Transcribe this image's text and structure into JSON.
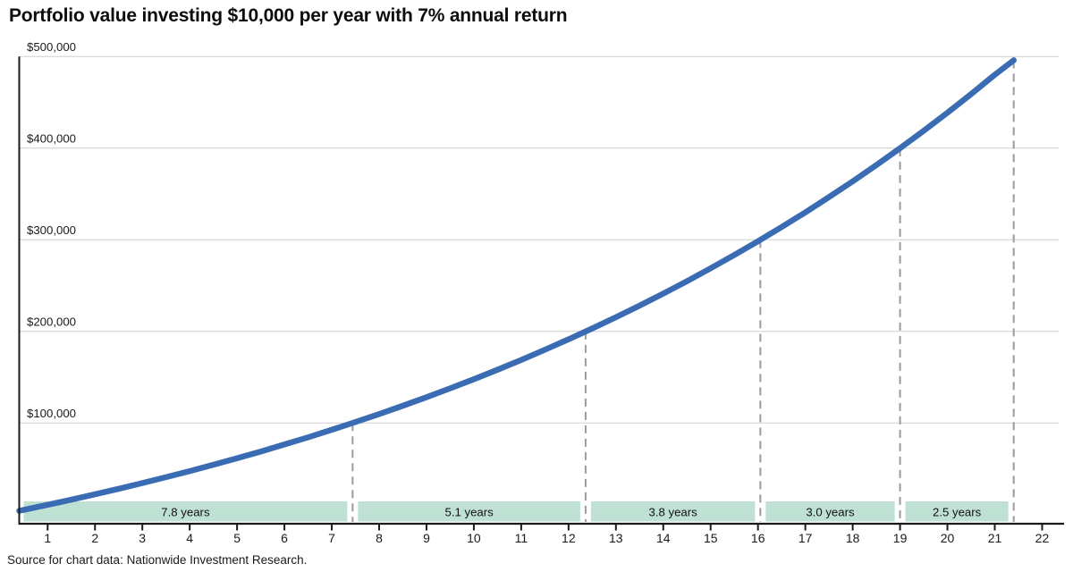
{
  "source_note": "Source for chart data: Nationwide Investment Research.",
  "chart_data": {
    "type": "line",
    "title": "Portfolio value investing $10,000 per year with 7% annual return",
    "xlabel": "",
    "ylabel": "",
    "legend_position": "none",
    "grid": "horizontal",
    "xlim": [
      0.4,
      22.35
    ],
    "ylim": [
      0,
      500000
    ],
    "x_ticks": [
      "1",
      "2",
      "3",
      "4",
      "5",
      "6",
      "7",
      "8",
      "9",
      "10",
      "11",
      "12",
      "13",
      "14",
      "15",
      "16",
      "17",
      "18",
      "19",
      "20",
      "21",
      "22"
    ],
    "y_ticks": [
      {
        "value": 100000,
        "label": "$100,000"
      },
      {
        "value": 200000,
        "label": "$200,000"
      },
      {
        "value": 300000,
        "label": "$300,000"
      },
      {
        "value": 400000,
        "label": "$400,000"
      },
      {
        "value": 500000,
        "label": "$500,000"
      }
    ],
    "series": [
      {
        "name": "Portfolio value",
        "points": [
          [
            0.4,
            4193
          ],
          [
            0.5,
            5260
          ],
          [
            1,
            10700
          ],
          [
            1.5,
            16328
          ],
          [
            2,
            22149
          ],
          [
            2.5,
            28171
          ],
          [
            3,
            34399
          ],
          [
            3.5,
            40842
          ],
          [
            4,
            47507
          ],
          [
            4.5,
            54401
          ],
          [
            5,
            61532
          ],
          [
            5.5,
            68909
          ],
          [
            6,
            76540
          ],
          [
            6.5,
            84433
          ],
          [
            7,
            92598
          ],
          [
            7.5,
            101043
          ],
          [
            8,
            109780
          ],
          [
            8.5,
            118817
          ],
          [
            9,
            128164
          ],
          [
            9.5,
            137833
          ],
          [
            10,
            147836
          ],
          [
            10.5,
            158182
          ],
          [
            11,
            168885
          ],
          [
            11.5,
            179956
          ],
          [
            12,
            191406
          ],
          [
            12.5,
            203251
          ],
          [
            13,
            215504
          ],
          [
            13.5,
            228179
          ],
          [
            14,
            241290
          ],
          [
            14.5,
            254852
          ],
          [
            15,
            268881
          ],
          [
            15.5,
            283391
          ],
          [
            16,
            298402
          ],
          [
            16.5,
            313929
          ],
          [
            17,
            329989
          ],
          [
            17.5,
            346605
          ],
          [
            18,
            363790
          ],
          [
            18.5,
            381566
          ],
          [
            19,
            399953
          ],
          [
            19.5,
            418977
          ],
          [
            20,
            438652
          ],
          [
            20.5,
            459004
          ],
          [
            21,
            480057
          ],
          [
            21.4,
            496000
          ]
        ]
      }
    ],
    "milestones": [
      {
        "year": 7.44,
        "value": 100000
      },
      {
        "year": 12.36,
        "value": 200000
      },
      {
        "year": 16.05,
        "value": 300000
      },
      {
        "year": 19.0,
        "value": 400000
      },
      {
        "year": 21.4,
        "value": 500000
      }
    ],
    "interval_bands": [
      {
        "from_year": 0.4,
        "to_year": 7.44,
        "label": "7.8 years"
      },
      {
        "from_year": 7.44,
        "to_year": 12.36,
        "label": "5.1 years"
      },
      {
        "from_year": 12.36,
        "to_year": 16.05,
        "label": "3.8 years"
      },
      {
        "from_year": 16.05,
        "to_year": 19.0,
        "label": "3.0 years"
      },
      {
        "from_year": 19.0,
        "to_year": 21.4,
        "label": "2.5 years"
      }
    ],
    "colors": {
      "line": "#3a6cb4",
      "band": "#bee1d4",
      "band_text": "#111111",
      "dashed": "#9b9b9b",
      "grid": "#cfcfcf",
      "axis": "#1a1a1a",
      "tick_text": "#1a1a1a",
      "background": "#ffffff"
    }
  }
}
